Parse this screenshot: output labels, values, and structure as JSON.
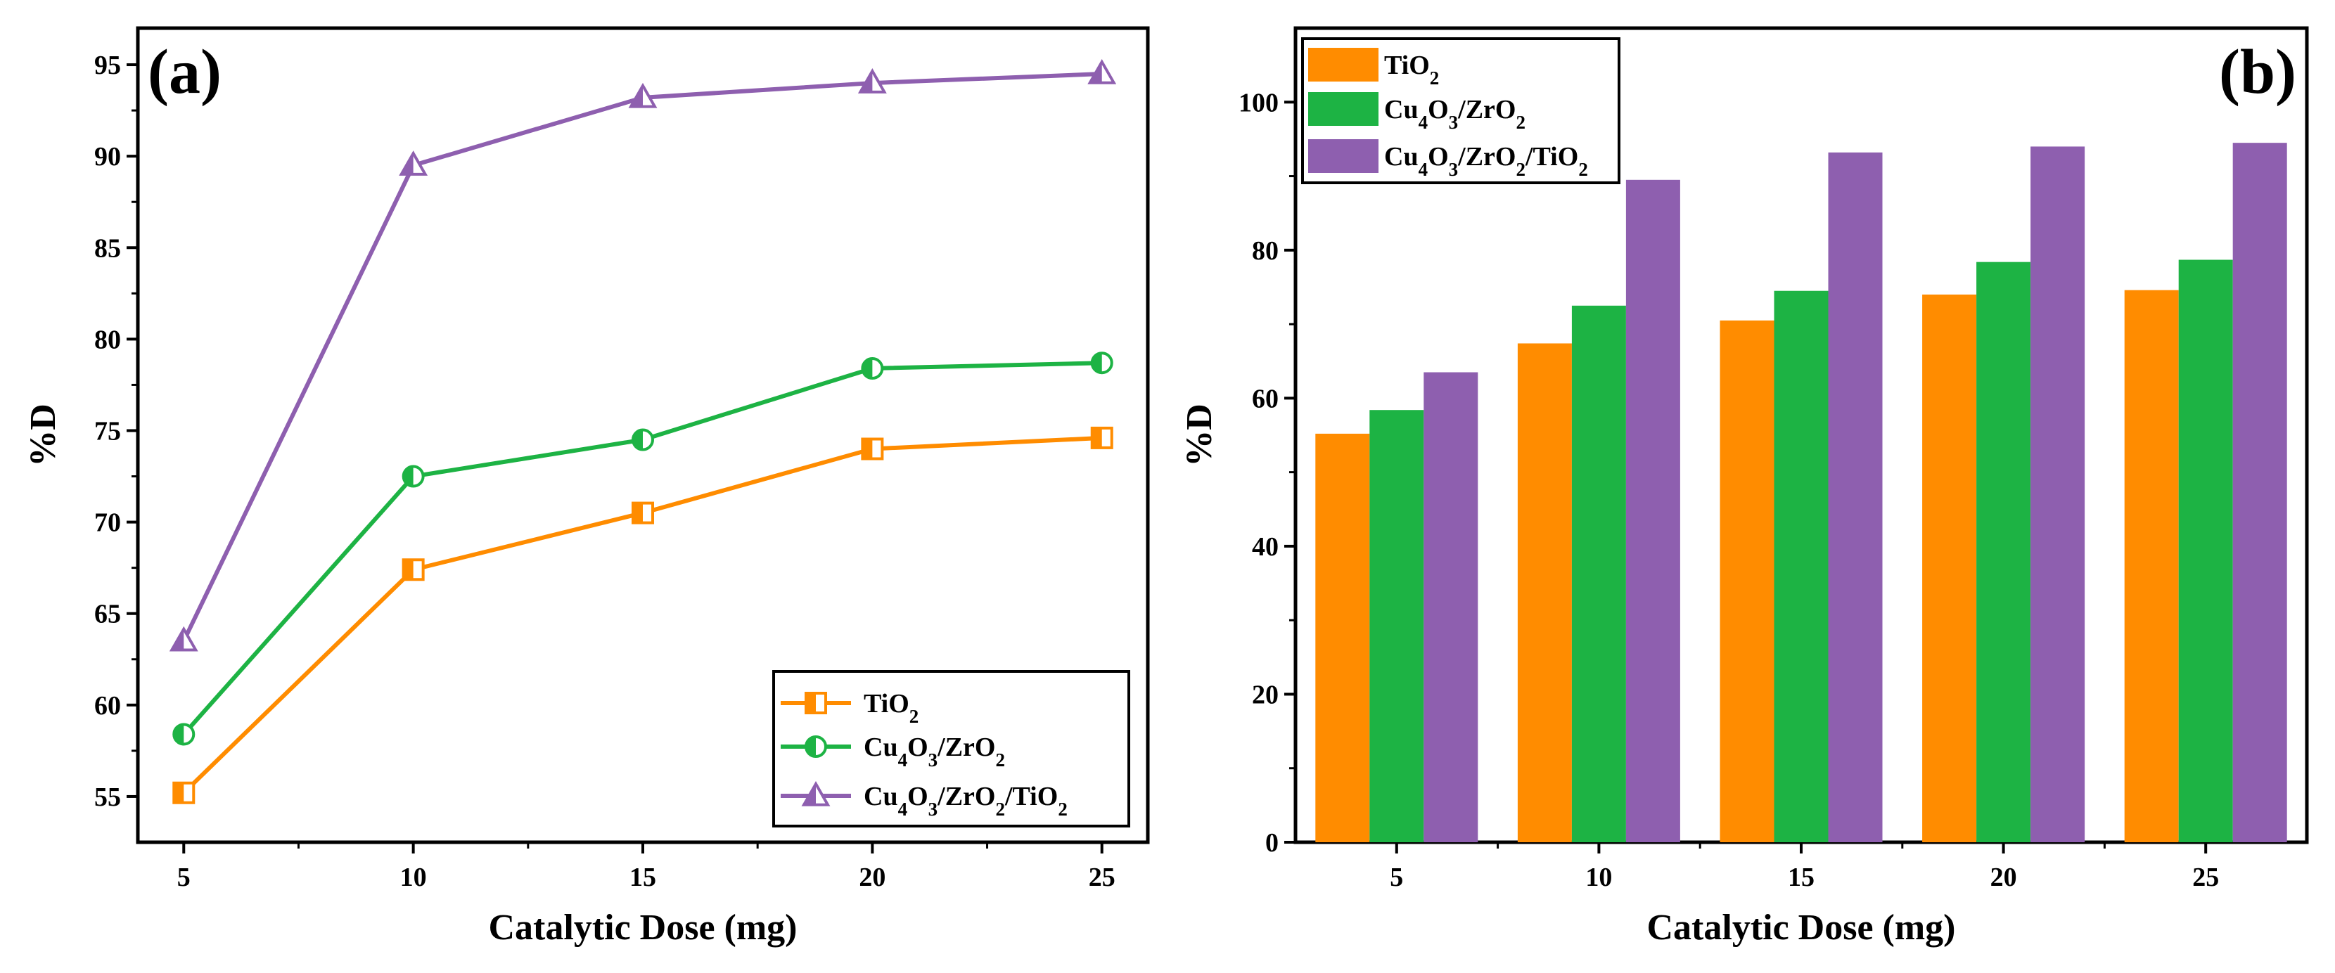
{
  "colors": {
    "tio2": "#FF8C00",
    "cu4o3_zro2": "#1DB344",
    "cu4o3_zro2_tio2": "#8E5FAF"
  },
  "legend": [
    {
      "base": "TiO",
      "sub": "2",
      "segments": [
        [
          "TiO",
          ""
        ],
        [
          "2",
          "sub"
        ]
      ]
    },
    {
      "base": "Cu4O3/ZrO2",
      "segments": [
        [
          "Cu",
          ""
        ],
        [
          "4",
          "sub"
        ],
        [
          "O",
          ""
        ],
        [
          "3",
          "sub"
        ],
        [
          "/ZrO",
          ""
        ],
        [
          "2",
          "sub"
        ]
      ]
    },
    {
      "base": "Cu4O3/ZrO2/TiO2",
      "segments": [
        [
          "Cu",
          ""
        ],
        [
          "4",
          "sub"
        ],
        [
          "O",
          ""
        ],
        [
          "3",
          "sub"
        ],
        [
          "/ZrO",
          ""
        ],
        [
          "2",
          "sub"
        ],
        [
          "/TiO",
          ""
        ],
        [
          "2",
          "sub"
        ]
      ]
    }
  ],
  "chart_data": [
    {
      "panel": "(a)",
      "type": "line",
      "x": [
        5,
        10,
        15,
        20,
        25
      ],
      "series": [
        {
          "name": "TiO2",
          "values": [
            55.2,
            67.4,
            70.5,
            74.0,
            74.6
          ],
          "marker": "square-half"
        },
        {
          "name": "Cu4O3/ZrO2",
          "values": [
            58.4,
            72.5,
            74.5,
            78.4,
            78.7
          ],
          "marker": "circle-half"
        },
        {
          "name": "Cu4O3/ZrO2/TiO2",
          "values": [
            63.5,
            89.5,
            93.2,
            94.0,
            94.5
          ],
          "marker": "triangle-half"
        }
      ],
      "xlabel": "Catalytic Dose (mg)",
      "ylabel": "%D",
      "xlim": [
        4,
        26
      ],
      "ylim": [
        52.5,
        97
      ],
      "xticks": [
        5,
        10,
        15,
        20,
        25
      ],
      "yticks": [
        55,
        60,
        65,
        70,
        75,
        80,
        85,
        90,
        95
      ],
      "legend_position": "bottom-right"
    },
    {
      "panel": "(b)",
      "type": "bar",
      "categories": [
        "5",
        "10",
        "15",
        "20",
        "25"
      ],
      "series": [
        {
          "name": "TiO2",
          "values": [
            55.2,
            67.4,
            70.5,
            74.0,
            74.6
          ]
        },
        {
          "name": "Cu4O3/ZrO2",
          "values": [
            58.4,
            72.5,
            74.5,
            78.4,
            78.7
          ]
        },
        {
          "name": "Cu4O3/ZrO2/TiO2",
          "values": [
            63.5,
            89.5,
            93.2,
            94.0,
            94.5
          ]
        }
      ],
      "xlabel": "Catalytic Dose (mg)",
      "ylabel": "%D",
      "ylim": [
        0,
        110
      ],
      "yticks": [
        0,
        20,
        40,
        60,
        80,
        100
      ],
      "legend_position": "top-left"
    }
  ]
}
